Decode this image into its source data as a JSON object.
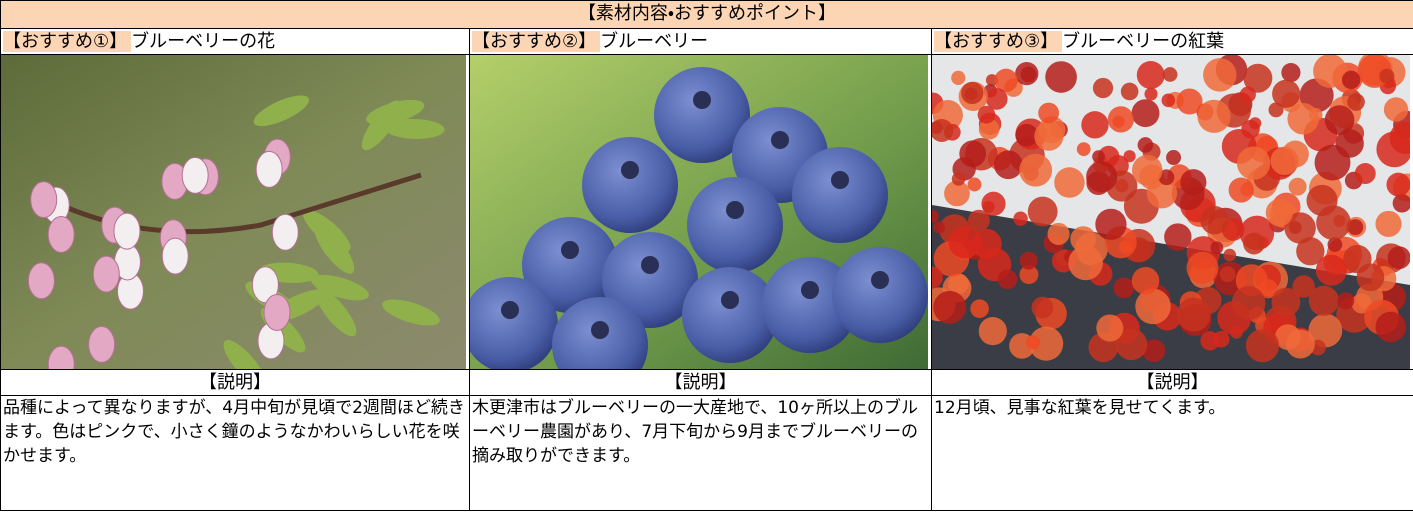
{
  "header": {
    "title": "【素材内容・おすすめポイント】"
  },
  "columns": [
    {
      "tag": "【おすすめ①】",
      "title": "ブルーベリーの花",
      "caption": "【説明】",
      "description": "品種によって異なりますが、4月中旬が見頃で2週間ほど続きます。色はピンクで、小さく鐘のようなかわいらしい花を咲かせます。"
    },
    {
      "tag": "【おすすめ②】",
      "title": "ブルーベリー",
      "caption": "【説明】",
      "description": "木更津市はブルーベリーの一大産地で、10ヶ所以上のブルーベリー農園があり、7月下旬から9月までブルーベリーの摘み取りができます。"
    },
    {
      "tag": "【おすすめ③】",
      "title": "ブルーベリーの紅葉",
      "caption": "【説明】",
      "description": "12月頃、見事な紅葉を見せてくます。"
    }
  ]
}
